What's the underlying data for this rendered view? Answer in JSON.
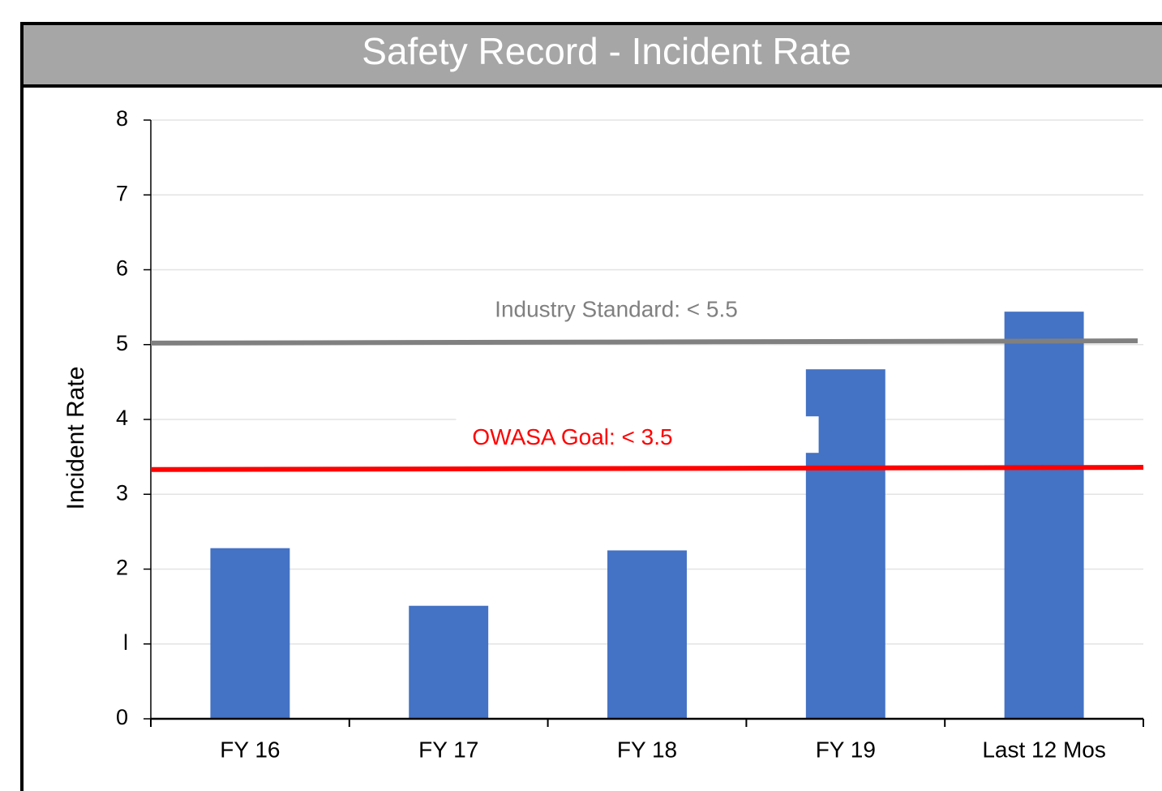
{
  "chart_data": {
    "type": "bar",
    "title": "Safety Record - Incident Rate",
    "y_label": "Incident Rate",
    "categories": [
      "FY 16",
      "FY 17",
      "FY 18",
      "FY 19",
      "Last 12 Mos"
    ],
    "values": [
      2.28,
      1.51,
      2.25,
      4.67,
      5.44
    ],
    "color": "#4472c4",
    "ylim": [
      0,
      8
    ],
    "yticks": [
      0,
      {
        "value": 1,
        "label": "l"
      },
      2,
      3,
      4,
      5,
      6,
      7,
      8
    ],
    "grid": true,
    "reference_lines": [
      {
        "label": "Industry Standard:  < 5.5",
        "start": 5.02,
        "end": 5.05,
        "color": "#808080"
      },
      {
        "label": "OWASA Goal:  < 3.5",
        "start": 3.33,
        "end": 3.36,
        "color": "#ff0000"
      }
    ]
  }
}
